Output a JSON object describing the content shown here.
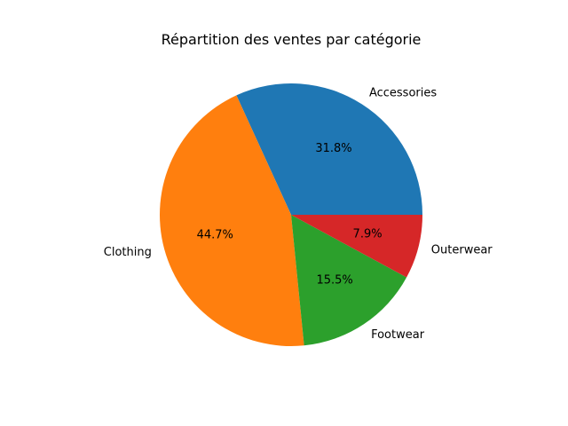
{
  "chart_data": {
    "type": "pie",
    "title": "Répartition des ventes par catégorie",
    "start_angle_deg": 0,
    "direction": "counterclockwise",
    "slices": [
      {
        "label": "Accessories",
        "value": 31.8,
        "pct_text": "31.8%",
        "color": "#1f77b4"
      },
      {
        "label": "Clothing",
        "value": 44.7,
        "pct_text": "44.7%",
        "color": "#ff7f0e"
      },
      {
        "label": "Footwear",
        "value": 15.5,
        "pct_text": "15.5%",
        "color": "#2ca02c"
      },
      {
        "label": "Outerwear",
        "value": 7.9,
        "pct_text": "7.9%",
        "color": "#d62728"
      }
    ]
  }
}
